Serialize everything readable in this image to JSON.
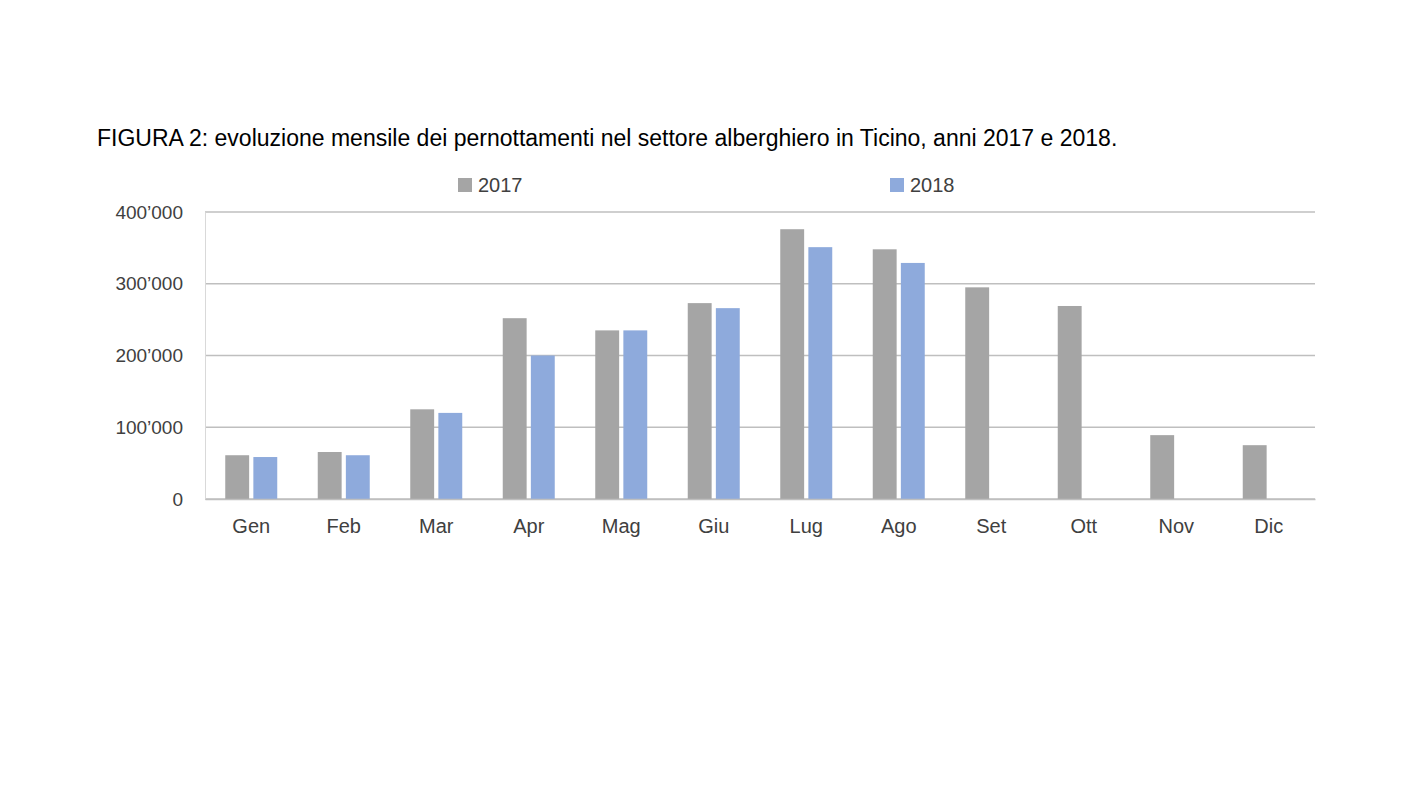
{
  "chart_data": {
    "type": "bar",
    "title": "FIGURA 2: evoluzione mensile dei pernottamenti nel settore alberghiero in Ticino, anni 2017 e 2018.",
    "categories": [
      "Gen",
      "Feb",
      "Mar",
      "Apr",
      "Mag",
      "Giu",
      "Lug",
      "Ago",
      "Set",
      "Ott",
      "Nov",
      "Dic"
    ],
    "series": [
      {
        "name": "2017",
        "color": "#a5a5a5",
        "values": [
          61000,
          65500,
          125000,
          252000,
          235000,
          273000,
          376000,
          348000,
          295000,
          269000,
          89000,
          75000
        ]
      },
      {
        "name": "2018",
        "color": "#8eaadc",
        "values": [
          58500,
          61000,
          120000,
          200000,
          235000,
          266000,
          351000,
          329000,
          null,
          null,
          null,
          null
        ]
      }
    ],
    "ylim": [
      0,
      400000
    ],
    "yticks": [
      0,
      {
        "value": 100000,
        "label": "100’000"
      },
      {
        "value": 200000,
        "label": "200’000"
      },
      {
        "value": 300000,
        "label": "300’000"
      },
      {
        "value": 400000,
        "label": "400’000"
      }
    ],
    "grid": true,
    "legend": "top"
  }
}
